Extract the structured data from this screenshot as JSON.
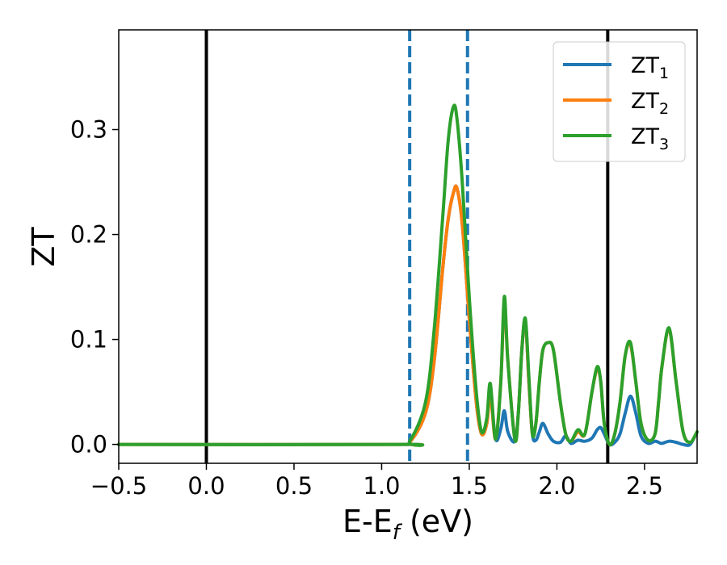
{
  "chart_data": {
    "type": "line",
    "title": "",
    "xlabel": {
      "main": "E-E",
      "sub": "f",
      "tail": " (eV)"
    },
    "ylabel": "ZT",
    "xlim": [
      -0.5,
      2.8
    ],
    "ylim": [
      -0.018,
      0.395
    ],
    "xticks": [
      -0.5,
      0.0,
      0.5,
      1.0,
      1.5,
      2.0,
      2.5
    ],
    "xtick_labels": [
      "−0.5",
      "0.0",
      "0.5",
      "1.0",
      "1.5",
      "2.0",
      "2.5"
    ],
    "yticks": [
      0.0,
      0.1,
      0.2,
      0.3
    ],
    "ytick_labels": [
      "0.0",
      "0.1",
      "0.2",
      "0.3"
    ],
    "grid": false,
    "legend_placement": "top-right",
    "vlines": [
      {
        "x": 0.0,
        "style": "solid",
        "color": "#000000"
      },
      {
        "x": 1.16,
        "style": "dashed",
        "color": "#1f77b4"
      },
      {
        "x": 1.49,
        "style": "dashed",
        "color": "#1f77b4"
      },
      {
        "x": 2.29,
        "style": "solid",
        "color": "#000000"
      }
    ],
    "series": [
      {
        "name": "ZT",
        "sub": "1",
        "color": "#1f77b4",
        "x": [
          -0.5,
          1.1,
          1.16,
          1.25,
          1.3,
          1.35,
          1.38,
          1.41,
          1.43,
          1.46,
          1.5,
          1.54,
          1.57,
          1.6,
          1.62,
          1.65,
          1.68,
          1.7,
          1.72,
          1.76,
          1.78,
          1.8,
          1.82,
          1.84,
          1.86,
          1.88,
          1.9,
          1.92,
          1.95,
          1.98,
          2.02,
          2.05,
          2.08,
          2.12,
          2.16,
          2.2,
          2.23,
          2.25,
          2.27,
          2.3,
          2.33,
          2.36,
          2.39,
          2.42,
          2.45,
          2.48,
          2.52,
          2.56,
          2.58,
          2.6,
          2.64,
          2.68,
          2.72,
          2.76,
          2.8
        ],
        "y": [
          0.0,
          0.0,
          0.002,
          0.03,
          0.08,
          0.17,
          0.215,
          0.24,
          0.244,
          0.21,
          0.12,
          0.04,
          0.01,
          0.02,
          0.048,
          0.005,
          0.015,
          0.032,
          0.012,
          0.003,
          0.03,
          0.09,
          0.118,
          0.06,
          0.01,
          0.004,
          0.012,
          0.02,
          0.01,
          0.003,
          0.002,
          0.008,
          0.001,
          0.004,
          0.003,
          0.006,
          0.014,
          0.016,
          0.01,
          0.0,
          0.002,
          0.01,
          0.03,
          0.046,
          0.03,
          0.008,
          0.001,
          0.003,
          0.002,
          0.001,
          0.003,
          0.002,
          0.0,
          0.0,
          0.012
        ]
      },
      {
        "name": "ZT",
        "sub": "2",
        "color": "#ff7f0e",
        "x": [
          -0.5,
          1.1,
          1.16,
          1.25,
          1.3,
          1.35,
          1.38,
          1.41,
          1.43,
          1.46,
          1.5,
          1.54,
          1.57,
          1.6,
          1.62,
          1.65,
          1.68,
          1.7,
          1.72,
          1.76,
          1.78,
          1.8,
          1.82,
          1.84,
          1.86,
          1.88,
          1.9,
          1.92,
          1.95,
          1.98,
          2.02,
          2.05,
          2.08,
          2.12,
          2.16,
          2.2,
          2.23,
          2.25,
          2.27,
          2.3,
          2.33,
          2.36,
          2.39,
          2.42,
          2.45,
          2.48,
          2.52,
          2.56,
          2.58,
          2.6,
          2.64,
          2.68,
          2.72,
          2.76,
          2.8
        ],
        "y": [
          0.0,
          0.0,
          0.002,
          0.03,
          0.08,
          0.17,
          0.215,
          0.24,
          0.244,
          0.21,
          0.12,
          0.04,
          0.01,
          0.02,
          0.048,
          0.005,
          0.06,
          0.135,
          0.08,
          0.005,
          0.03,
          0.09,
          0.118,
          0.06,
          0.01,
          0.02,
          0.06,
          0.09,
          0.097,
          0.09,
          0.04,
          0.01,
          0.003,
          0.012,
          0.01,
          0.05,
          0.072,
          0.06,
          0.02,
          0.0,
          0.01,
          0.04,
          0.085,
          0.095,
          0.06,
          0.02,
          0.004,
          0.01,
          0.04,
          0.075,
          0.11,
          0.06,
          0.012,
          0.002,
          0.012
        ]
      },
      {
        "name": "ZT",
        "sub": "3",
        "color": "#2ca02c",
        "x": [
          -0.5,
          1.1,
          1.16,
          1.25,
          1.3,
          1.35,
          1.38,
          1.41,
          1.43,
          1.46,
          1.5,
          1.54,
          1.57,
          1.6,
          1.62,
          1.65,
          1.68,
          1.7,
          1.72,
          1.76,
          1.78,
          1.8,
          1.82,
          1.84,
          1.86,
          1.88,
          1.9,
          1.92,
          1.95,
          1.98,
          2.02,
          2.05,
          2.08,
          2.12,
          2.16,
          2.2,
          2.23,
          2.25,
          2.27,
          2.3,
          2.33,
          2.36,
          2.39,
          2.42,
          2.45,
          2.48,
          2.52,
          2.56,
          2.58,
          2.6,
          2.64,
          2.68,
          2.72,
          2.76,
          2.8
        ],
        "y": [
          0.0,
          0.0,
          0.003,
          0.04,
          0.11,
          0.22,
          0.29,
          0.322,
          0.31,
          0.25,
          0.14,
          0.05,
          0.012,
          0.025,
          0.058,
          0.005,
          0.06,
          0.141,
          0.08,
          0.005,
          0.03,
          0.09,
          0.12,
          0.065,
          0.01,
          0.02,
          0.06,
          0.09,
          0.097,
          0.09,
          0.04,
          0.01,
          0.003,
          0.014,
          0.01,
          0.05,
          0.074,
          0.06,
          0.02,
          0.0,
          0.01,
          0.04,
          0.085,
          0.097,
          0.06,
          0.02,
          0.004,
          0.01,
          0.04,
          0.075,
          0.111,
          0.06,
          0.012,
          0.002,
          0.012
        ]
      }
    ]
  }
}
